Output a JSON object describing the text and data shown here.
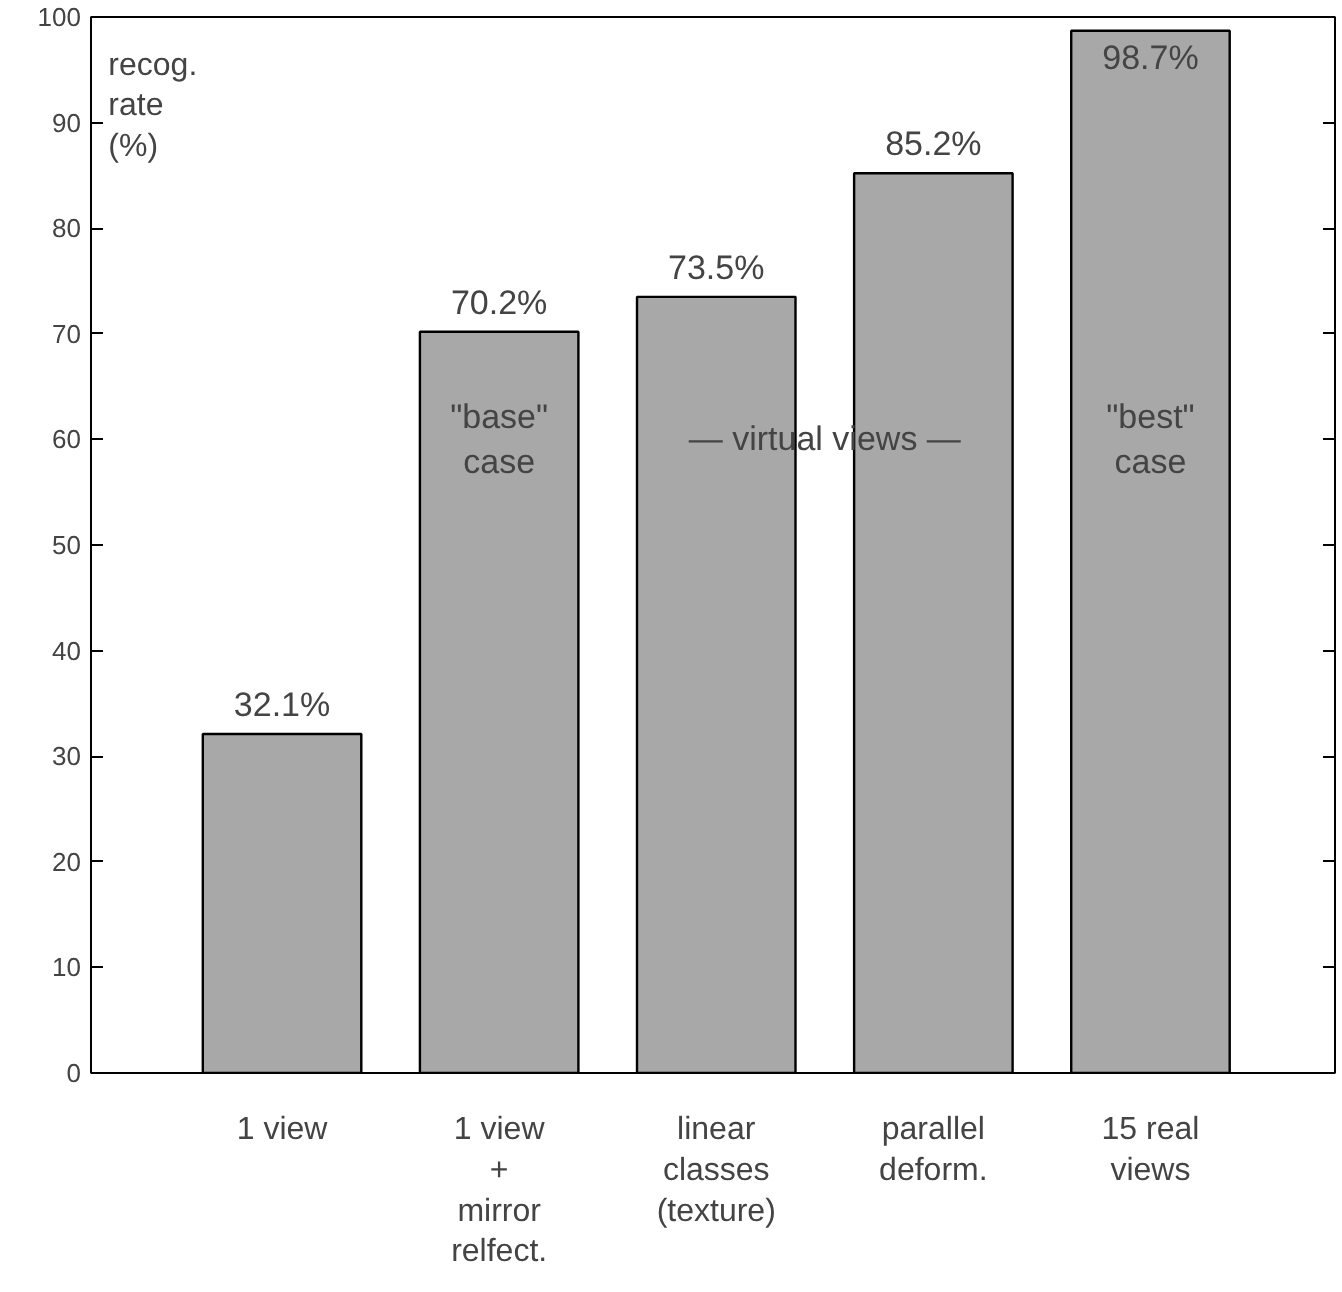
{
  "chart_data": {
    "type": "bar",
    "ylabel": "recog.\nrate\n(%)",
    "categories": [
      "1 view",
      "1 view\n+\nmirror\nrelfect.",
      "linear\nclasses\n(texture)",
      "parallel\ndeform.",
      "15 real\nviews"
    ],
    "values": [
      32.1,
      70.2,
      73.5,
      85.2,
      98.7
    ],
    "value_labels": [
      "32.1%",
      "70.2%",
      "73.5%",
      "85.2%",
      "98.7%"
    ],
    "color": "#a8a8a8",
    "ylim": [
      0,
      100
    ],
    "yticks": [
      0,
      10,
      20,
      30,
      40,
      50,
      60,
      70,
      80,
      90,
      100
    ],
    "grid": false,
    "annotations": [
      "\"base\"\ncase",
      "— virtual views —",
      "\"best\"\ncase"
    ]
  }
}
